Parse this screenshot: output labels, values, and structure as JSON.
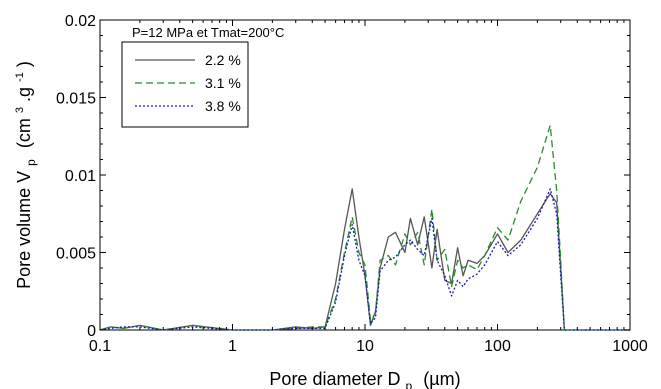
{
  "chart_data": {
    "type": "line",
    "xlabel": "Pore diameter D",
    "xlabel_sub": "p",
    "xlabel_unit": "(µm)",
    "ylabel": "Pore volume V",
    "ylabel_sub": "p",
    "ylabel_unit_open": "(cm",
    "ylabel_unit_sup1": "3",
    "ylabel_unit_mid": ".g",
    "ylabel_unit_sup2": "-1",
    "ylabel_unit_close": ")",
    "xscale": "log",
    "xlim": [
      0.1,
      1000
    ],
    "ylim": [
      0,
      0.02
    ],
    "xticks": [
      "0.1",
      "1",
      "10",
      "100",
      "1000"
    ],
    "yticks": [
      "0",
      "0.005",
      "0.01",
      "0.015",
      "0.02"
    ],
    "grid": false,
    "legend_title": "P=12 MPa et Tmat=200°C",
    "legend_position": "top-left",
    "series": [
      {
        "name": "2.2 %",
        "color": "#555555",
        "dash": "solid",
        "x": [
          0.1,
          0.12,
          0.15,
          0.2,
          0.3,
          0.5,
          1,
          2,
          3,
          4,
          5,
          6,
          7,
          8,
          9,
          10,
          11,
          12,
          13,
          15,
          17,
          20,
          22,
          25,
          28,
          32,
          35,
          40,
          45,
          50,
          55,
          60,
          70,
          80,
          100,
          120,
          150,
          200,
          250,
          280,
          300,
          320,
          1000
        ],
        "y": [
          0,
          0.0002,
          0.0001,
          0.0003,
          0,
          0.0003,
          0,
          0,
          0.0002,
          0.0001,
          0.0002,
          0.003,
          0.0065,
          0.0091,
          0.006,
          0.0035,
          0.0003,
          0.0012,
          0.004,
          0.006,
          0.0063,
          0.005,
          0.0072,
          0.0055,
          0.0073,
          0.004,
          0.0065,
          0.0032,
          0.003,
          0.0053,
          0.0035,
          0.0045,
          0.0043,
          0.0048,
          0.0062,
          0.005,
          0.0058,
          0.0075,
          0.0088,
          0.0082,
          0.004,
          0,
          0
        ]
      },
      {
        "name": "3.1 %",
        "color": "#2a8a2a",
        "dash": "dashed",
        "x": [
          0.1,
          0.12,
          0.15,
          0.2,
          0.3,
          0.5,
          1,
          2,
          3,
          4,
          5,
          6,
          7,
          8,
          9,
          10,
          11,
          12,
          13,
          15,
          17,
          20,
          22,
          25,
          28,
          32,
          35,
          40,
          45,
          50,
          55,
          60,
          70,
          80,
          100,
          120,
          150,
          200,
          250,
          280,
          300,
          320,
          1000
        ],
        "y": [
          0,
          0.0002,
          0.0001,
          0.0003,
          0,
          0.0003,
          0,
          0,
          0.0001,
          0.0002,
          0.0002,
          0.002,
          0.005,
          0.0073,
          0.005,
          0.0042,
          0.0006,
          0.0011,
          0.0045,
          0.0048,
          0.0042,
          0.0062,
          0.0055,
          0.0063,
          0.0042,
          0.0078,
          0.0045,
          0.0052,
          0.0028,
          0.0045,
          0.004,
          0.0042,
          0.0039,
          0.0048,
          0.0066,
          0.0058,
          0.0083,
          0.0105,
          0.0132,
          0.009,
          0.0045,
          0,
          0
        ]
      },
      {
        "name": "3.8 %",
        "color": "#1a1ab0",
        "dash": "dotted",
        "x": [
          0.1,
          0.12,
          0.15,
          0.2,
          0.3,
          0.5,
          1,
          2,
          3,
          4,
          5,
          6,
          7,
          8,
          9,
          10,
          11,
          12,
          13,
          15,
          17,
          20,
          22,
          25,
          28,
          32,
          35,
          40,
          45,
          50,
          55,
          60,
          70,
          80,
          100,
          120,
          150,
          200,
          250,
          280,
          300,
          320,
          1000
        ],
        "y": [
          0,
          0.0001,
          0.0002,
          0.0002,
          0,
          0.0002,
          0,
          0,
          0.0001,
          0.0001,
          0.0001,
          0.0018,
          0.0048,
          0.0068,
          0.0045,
          0.0035,
          0.0004,
          0.0008,
          0.0038,
          0.0045,
          0.0047,
          0.0055,
          0.0058,
          0.0052,
          0.0048,
          0.0072,
          0.0045,
          0.0035,
          0.0022,
          0.0032,
          0.0028,
          0.0033,
          0.0036,
          0.0042,
          0.0057,
          0.0048,
          0.0055,
          0.0072,
          0.0091,
          0.0075,
          0.0035,
          0,
          0
        ]
      }
    ]
  }
}
